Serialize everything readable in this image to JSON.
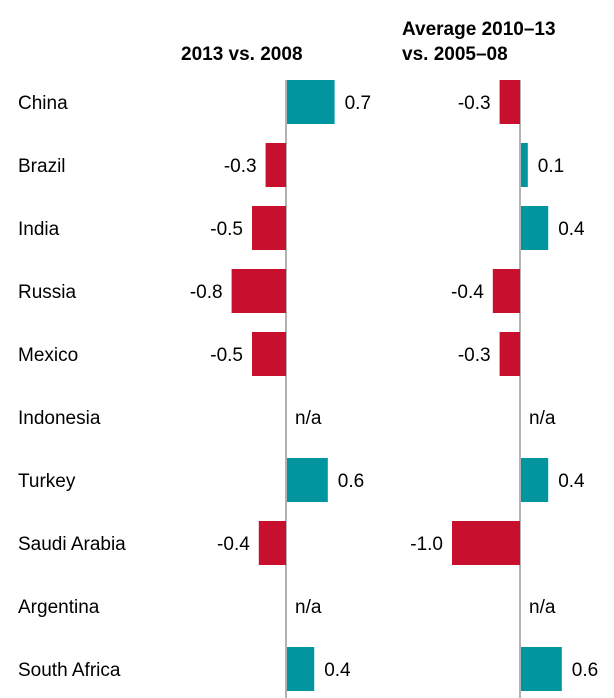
{
  "chart_data": {
    "type": "bar",
    "orientation": "horizontal",
    "categories": [
      "China",
      "Brazil",
      "India",
      "Russia",
      "Mexico",
      "Indonesia",
      "Turkey",
      "Saudi Arabia",
      "Argentina",
      "South Africa"
    ],
    "series": [
      {
        "name": "2013 vs. 2008",
        "values": [
          0.7,
          -0.3,
          -0.5,
          -0.8,
          -0.5,
          null,
          0.6,
          -0.4,
          null,
          0.4
        ],
        "labels": [
          "0.7",
          "-0.3",
          "-0.5",
          "-0.8",
          "-0.5",
          "n/a",
          "0.6",
          "-0.4",
          "n/a",
          "0.4"
        ]
      },
      {
        "name": "Average 2010–13 vs. 2005–08",
        "values": [
          -0.3,
          0.1,
          0.4,
          -0.4,
          -0.3,
          null,
          0.4,
          -1.0,
          null,
          0.6
        ],
        "labels": [
          "-0.3",
          "0.1",
          "0.4",
          "-0.4",
          "-0.3",
          "n/a",
          "0.4",
          "-1.0",
          "n/a",
          "0.6"
        ]
      }
    ],
    "headers": [
      [
        "2013 vs. 2008"
      ],
      [
        "Average 2010–13",
        "vs. 2005–08"
      ]
    ],
    "colors": {
      "positive": "#00959f",
      "negative": "#c8102e",
      "axis": "#7f7f7f"
    },
    "grid": false,
    "legend": "none"
  }
}
